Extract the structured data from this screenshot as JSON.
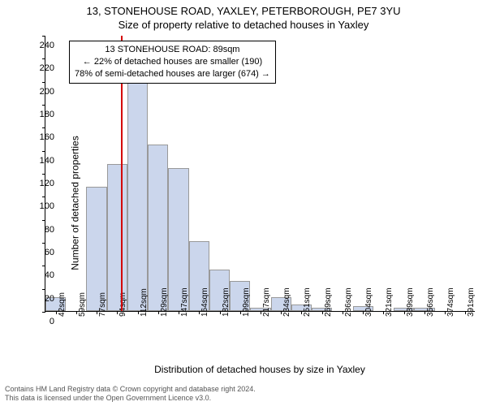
{
  "title_line1": "13, STONEHOUSE ROAD, YAXLEY, PETERBOROUGH, PE7 3YU",
  "title_line2": "Size of property relative to detached houses in Yaxley",
  "y_axis_label": "Number of detached properties",
  "x_axis_label": "Distribution of detached houses by size in Yaxley",
  "chart": {
    "type": "histogram",
    "y_max": 240,
    "y_ticks": [
      0,
      20,
      40,
      60,
      80,
      100,
      120,
      140,
      160,
      180,
      200,
      220,
      240
    ],
    "x_labels": [
      "42sqm",
      "59sqm",
      "77sqm",
      "94sqm",
      "112sqm",
      "129sqm",
      "147sqm",
      "164sqm",
      "182sqm",
      "199sqm",
      "217sqm",
      "234sqm",
      "251sqm",
      "269sqm",
      "286sqm",
      "304sqm",
      "321sqm",
      "339sqm",
      "356sqm",
      "374sqm",
      "391sqm"
    ],
    "bar_values": [
      12,
      0,
      108,
      128,
      199,
      145,
      124,
      61,
      36,
      26,
      3,
      12,
      6,
      3,
      0,
      4,
      0,
      3,
      3,
      0,
      0
    ],
    "bar_fill": "#cbd6ec",
    "bar_stroke": "#999999",
    "marker_index": 3.7,
    "marker_color": "#d40000",
    "background": "#ffffff"
  },
  "callout": {
    "line1": "13 STONEHOUSE ROAD: 89sqm",
    "line2": "← 22% of detached houses are smaller (190)",
    "line3": "78% of semi-detached houses are larger (674) →"
  },
  "footer": {
    "line1": "Contains HM Land Registry data © Crown copyright and database right 2024.",
    "line2": "This data is licensed under the Open Government Licence v3.0."
  }
}
